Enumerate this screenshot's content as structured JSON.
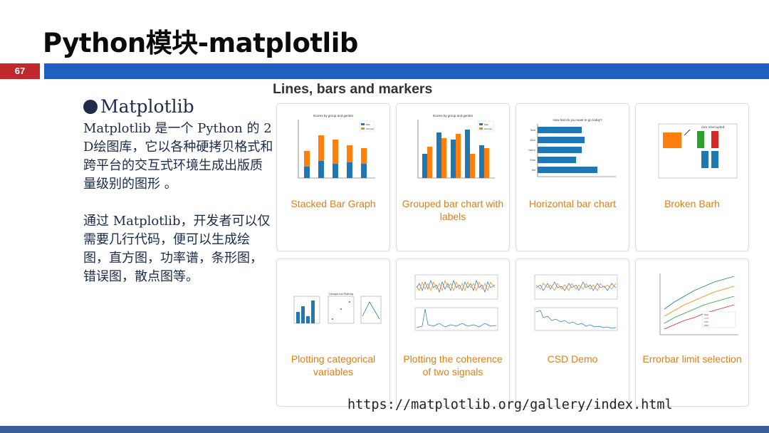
{
  "slide": {
    "title": "Python模块-matplotlib",
    "page_number": "67"
  },
  "left": {
    "heading": "Matplotlib",
    "paragraph1": "Matplotlib 是一个 Python 的 2D绘图库，它以各种硬拷贝格式和跨平台的交互式环境生成出版质量级别的图形 。",
    "paragraph2": "通过 Matplotlib，开发者可以仅需要几行代码，便可以生成绘图，直方图，功率谱，条形图，错误图，散点图等。"
  },
  "gallery": {
    "section_title": "Lines, bars and markers",
    "cards": [
      {
        "caption": "Stacked Bar Graph",
        "thumb_title": "Scores by group and gender",
        "legend": [
          "Men",
          "Women"
        ]
      },
      {
        "caption": "Grouped bar chart with labels",
        "thumb_title": "Scores by group and gender",
        "legend": [
          "Men",
          "Women"
        ]
      },
      {
        "caption": "Horizontal bar chart",
        "thumb_title": "How fast do you want to go today?",
        "categories": [
          "Tom",
          "Dick",
          "Harry",
          "Slim",
          "Jim"
        ]
      },
      {
        "caption": "Broken Barh",
        "thumb_title": "race interrupted"
      },
      {
        "caption": "Plotting categorical variables",
        "thumb_title": "Categorical Plotting"
      },
      {
        "caption": "Plotting the coherence of two signals"
      },
      {
        "caption": "CSD Demo"
      },
      {
        "caption": "Errorbar limit selection"
      }
    ]
  },
  "footer": {
    "url": "https://matplotlib.org/gallery/index.html"
  },
  "colors": {
    "accent_red": "#c0282e",
    "accent_blue": "#1f5fbf",
    "chart_blue": "#1f77b4",
    "chart_orange": "#ff7f0e",
    "chart_green": "#2ca02c",
    "chart_red": "#d62728",
    "caption_orange": "#d7801f"
  }
}
